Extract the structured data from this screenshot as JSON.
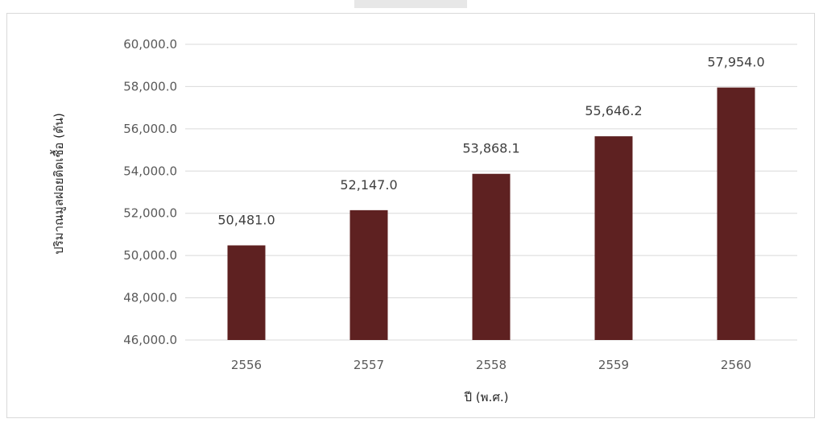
{
  "chart_data": {
    "type": "bar",
    "categories": [
      "2556",
      "2557",
      "2558",
      "2559",
      "2560"
    ],
    "values": [
      50481.0,
      52147.0,
      53868.1,
      55646.2,
      57954.0
    ],
    "data_labels": [
      "50,481.0",
      "52,147.0",
      "53,868.1",
      "55,646.2",
      "57,954.0"
    ],
    "xlabel": "ปี (พ.ศ.)",
    "ylabel": "ปริมาณมูลฝอยติดเชื้อ (ตัน)",
    "ylim": [
      46000,
      60000
    ],
    "ytick_labels": [
      "46,000.0",
      "48,000.0",
      "50,000.0",
      "52,000.0",
      "54,000.0",
      "56,000.0",
      "58,000.0",
      "60,000.0"
    ],
    "grid": true,
    "legend": "none",
    "bar_color": "#5e2121",
    "grid_color": "#d9d9d9"
  }
}
